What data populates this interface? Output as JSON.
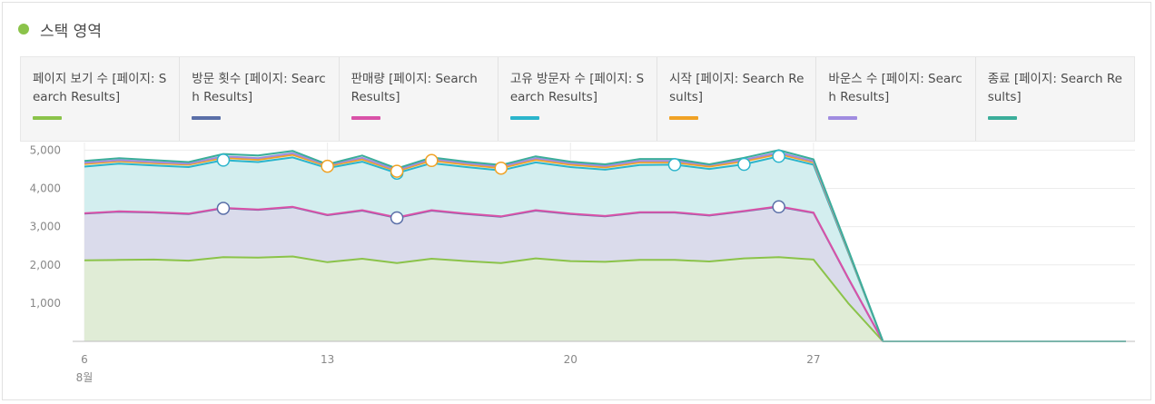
{
  "header": {
    "title": "스택 영역",
    "dot_color": "#8bc34a"
  },
  "legend": [
    {
      "label": "페이지 보기 수 [페이지: Search Results]",
      "color": "#8bc34a"
    },
    {
      "label": "방문 횟수 [페이지: Search Results]",
      "color": "#5a6fa8"
    },
    {
      "label": "판매량 [페이지: Search Results]",
      "color": "#d952a8"
    },
    {
      "label": "고유 방문자 수 [페이지: Search Results]",
      "color": "#2bb5cc"
    },
    {
      "label": "시작 [페이지: Search Results]",
      "color": "#f0a225"
    },
    {
      "label": "바운스 수 [페이지: Search Results]",
      "color": "#a08ce0"
    },
    {
      "label": "종료 [페이지: Search Results]",
      "color": "#3bae9a"
    }
  ],
  "chart_data": {
    "type": "area",
    "stacked": true,
    "title": "스택 영역",
    "x": [
      6,
      7,
      8,
      9,
      10,
      11,
      12,
      13,
      14,
      15,
      16,
      17,
      18,
      19,
      20,
      21,
      22,
      23,
      24,
      25,
      26,
      27,
      28,
      29,
      30,
      31,
      32,
      33,
      34,
      35,
      36
    ],
    "x_ticks": [
      {
        "value": 6,
        "label": "6",
        "sublabel": "8월"
      },
      {
        "value": 13,
        "label": "13"
      },
      {
        "value": 20,
        "label": "20"
      },
      {
        "value": 27,
        "label": "27"
      }
    ],
    "y_ticks": [
      "1,000",
      "2,000",
      "3,000",
      "4,000",
      "5,000"
    ],
    "ylim": [
      0,
      5200
    ],
    "grid": true,
    "series": [
      {
        "name": "페이지 보기 수 [페이지: Search Results]",
        "color": "#8bc34a",
        "cumulative": [
          2120,
          2130,
          2140,
          2110,
          2200,
          2190,
          2220,
          2070,
          2160,
          2050,
          2160,
          2100,
          2050,
          2170,
          2100,
          2080,
          2130,
          2130,
          2090,
          2170,
          2200,
          2140,
          1000,
          0,
          0,
          0,
          0,
          0,
          0,
          0,
          0
        ]
      },
      {
        "name": "방문 횟수 [페이지: Search Results]",
        "color": "#5a6fa8",
        "cumulative": [
          3340,
          3390,
          3370,
          3330,
          3480,
          3440,
          3510,
          3300,
          3420,
          3230,
          3420,
          3330,
          3260,
          3420,
          3330,
          3270,
          3370,
          3370,
          3290,
          3400,
          3520,
          3360,
          1650,
          0,
          0,
          0,
          0,
          0,
          0,
          0,
          0
        ]
      },
      {
        "name": "판매량 [페이지: Search Results]",
        "color": "#d952a8",
        "cumulative": [
          3350,
          3400,
          3380,
          3340,
          3490,
          3450,
          3520,
          3310,
          3430,
          3240,
          3430,
          3340,
          3270,
          3430,
          3340,
          3280,
          3380,
          3380,
          3300,
          3410,
          3530,
          3370,
          1660,
          0,
          0,
          0,
          0,
          0,
          0,
          0,
          0
        ]
      },
      {
        "name": "고유 방문자 수 [페이지: Search Results]",
        "color": "#2bb5cc",
        "cumulative": [
          4570,
          4650,
          4600,
          4560,
          4740,
          4690,
          4810,
          4530,
          4700,
          4400,
          4660,
          4560,
          4470,
          4680,
          4560,
          4490,
          4610,
          4620,
          4510,
          4630,
          4840,
          4620,
          2330,
          0,
          0,
          0,
          0,
          0,
          0,
          0,
          0
        ]
      },
      {
        "name": "시작 [페이지: Search Results]",
        "color": "#f0a225",
        "cumulative": [
          4640,
          4710,
          4660,
          4620,
          4800,
          4750,
          4880,
          4580,
          4760,
          4450,
          4730,
          4620,
          4530,
          4750,
          4620,
          4550,
          4680,
          4680,
          4570,
          4710,
          4900,
          4680,
          2360,
          0,
          0,
          0,
          0,
          0,
          0,
          0,
          0
        ]
      },
      {
        "name": "바운스 수 [페이지: Search Results]",
        "color": "#a08ce0",
        "cumulative": [
          4670,
          4740,
          4690,
          4650,
          4840,
          4790,
          4920,
          4610,
          4800,
          4480,
          4770,
          4660,
          4570,
          4790,
          4660,
          4590,
          4720,
          4720,
          4610,
          4750,
          4940,
          4710,
          2380,
          0,
          0,
          0,
          0,
          0,
          0,
          0,
          0
        ]
      },
      {
        "name": "종료 [페이지: Search Results]",
        "color": "#3bae9a",
        "cumulative": [
          4720,
          4790,
          4740,
          4690,
          4900,
          4860,
          4980,
          4630,
          4860,
          4520,
          4810,
          4700,
          4610,
          4840,
          4700,
          4630,
          4770,
          4770,
          4630,
          4800,
          5000,
          4760,
          2400,
          0,
          0,
          0,
          0,
          0,
          0,
          0,
          0
        ]
      }
    ],
    "markers": [
      {
        "series": 1,
        "x": 10
      },
      {
        "series": 1,
        "x": 15
      },
      {
        "series": 1,
        "x": 26
      },
      {
        "series": 3,
        "x": 10
      },
      {
        "series": 3,
        "x": 15
      },
      {
        "series": 3,
        "x": 23
      },
      {
        "series": 3,
        "x": 25
      },
      {
        "series": 3,
        "x": 26
      },
      {
        "series": 4,
        "x": 13
      },
      {
        "series": 4,
        "x": 15
      },
      {
        "series": 4,
        "x": 16
      },
      {
        "series": 4,
        "x": 18
      }
    ]
  }
}
